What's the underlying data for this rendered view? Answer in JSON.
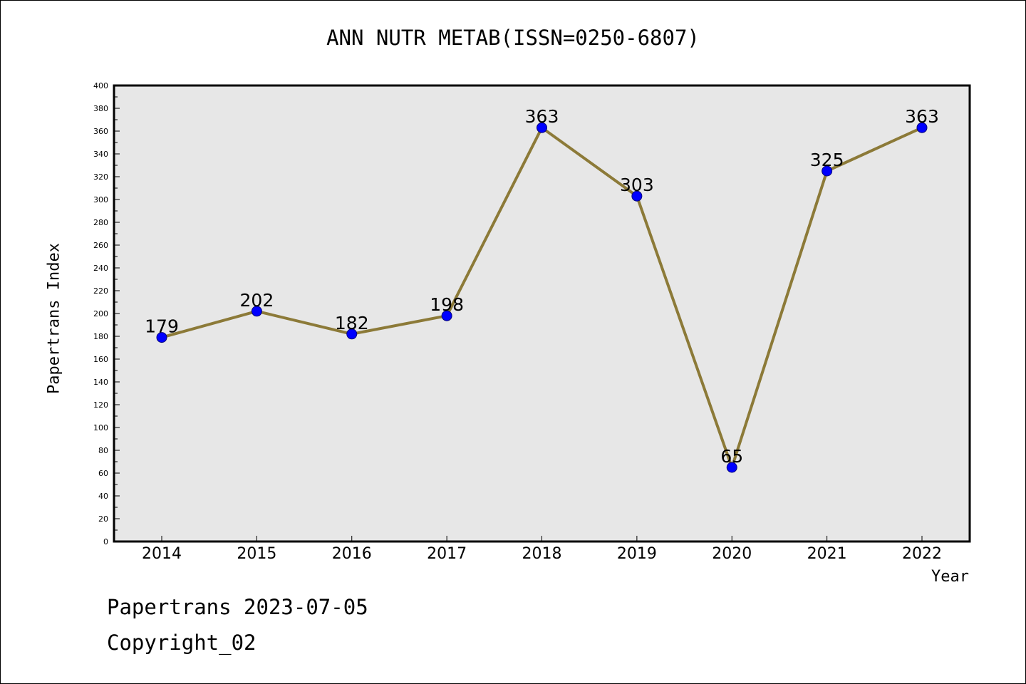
{
  "chart_data": {
    "type": "line",
    "title": "ANN NUTR METAB(ISSN=0250-6807)",
    "xlabel": "Year",
    "ylabel": "Papertrans Index",
    "x": [
      "2014",
      "2015",
      "2016",
      "2017",
      "2018",
      "2019",
      "2020",
      "2021",
      "2022"
    ],
    "series": [
      {
        "values": [
          179,
          202,
          182,
          198,
          363,
          303,
          65,
          325,
          363
        ]
      }
    ],
    "data_labels": [
      "179",
      "202",
      "182",
      "198",
      "363",
      "303",
      "65",
      "325",
      "363"
    ],
    "ylim": [
      0,
      400
    ],
    "yticks": [
      0,
      20,
      40,
      60,
      80,
      100,
      120,
      140,
      160,
      180,
      200,
      220,
      240,
      260,
      280,
      300,
      320,
      340,
      360,
      380,
      400
    ],
    "grid": false,
    "colors": {
      "plot_background": "#e7e7e7",
      "line": "#8c7a38",
      "marker": "#0000ff"
    }
  },
  "footer": {
    "date_line": "Papertrans 2023-07-05",
    "copyright_line": "Copyright_02"
  }
}
